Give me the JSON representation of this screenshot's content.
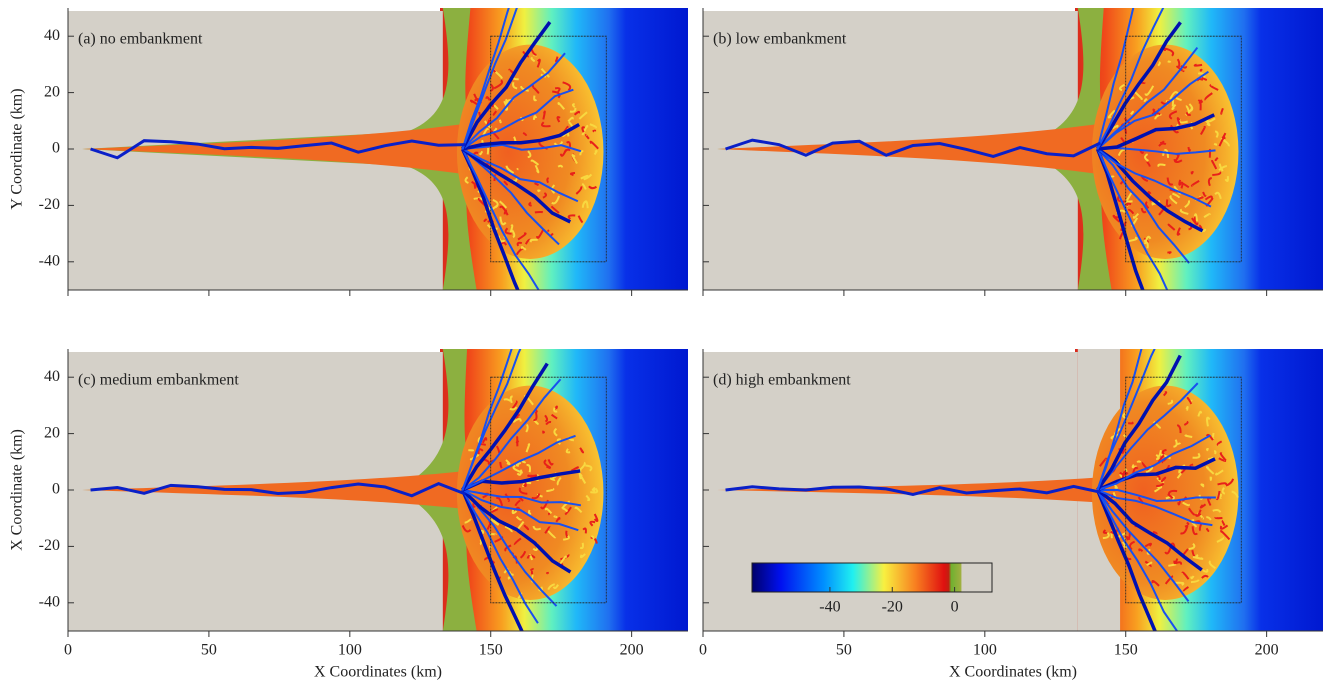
{
  "chart_data": [
    {
      "type": "heatmap",
      "title": "(a) no embankment",
      "ylabel": "Y Coordinate (km)",
      "xlim": [
        0,
        220
      ],
      "ylim": [
        -50,
        50
      ],
      "yticks": [
        -40,
        -20,
        0,
        20,
        40
      ]
    },
    {
      "type": "heatmap",
      "title": "(b) low embankment",
      "xlim": [
        0,
        220
      ],
      "ylim": [
        -50,
        50
      ]
    },
    {
      "type": "heatmap",
      "title": "(c) medium embankment",
      "ylabel": "X Coordinate (km)",
      "xlabel": "X Coordinates (km)",
      "xlim": [
        0,
        220
      ],
      "ylim": [
        -50,
        50
      ],
      "xticks": [
        0,
        50,
        100,
        150,
        200
      ],
      "yticks": [
        -40,
        -20,
        0,
        20,
        40
      ]
    },
    {
      "type": "heatmap",
      "title": "(d) high embankment",
      "xlabel": "X Coordinates (km)",
      "xlim": [
        0,
        220
      ],
      "ylim": [
        -50,
        50
      ],
      "xticks": [
        0,
        50,
        100,
        150,
        200
      ],
      "colorbar": {
        "lim": [
          -65,
          12
        ],
        "ticks": [
          -40,
          -20,
          0
        ]
      }
    }
  ]
}
